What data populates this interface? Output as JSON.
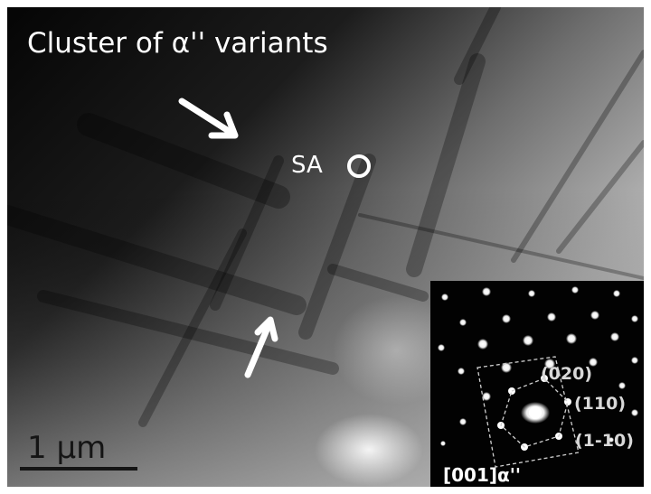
{
  "image": {
    "caption": "Cluster of  α'' variants",
    "selected_area_label": "SA",
    "scale_bar_label": "1 μm"
  },
  "diffraction_inset": {
    "spot_indices": [
      "(020)",
      "(110)",
      "(1-10)"
    ],
    "zone_axis": "[001]α''"
  },
  "colors": {
    "background_dark": "#0c0c0c",
    "background_bright": "#d4d4d4",
    "annotation": "#ffffff",
    "scale_bar": "#151515"
  },
  "icons": [
    "arrow-icon",
    "selected-area-circle-icon",
    "scale-bar-icon"
  ]
}
